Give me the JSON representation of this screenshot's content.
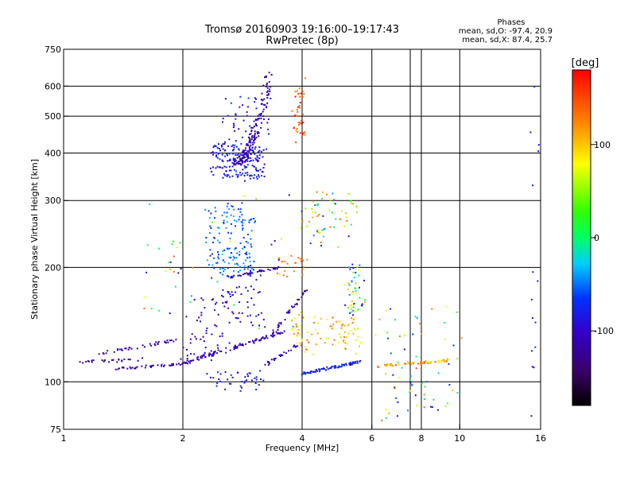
{
  "chart_data": {
    "type": "scatter",
    "title": "Tromsø 20160903 19:16:00–19:17:43",
    "subtitle": "RwPretec (8p)",
    "xlabel": "Frequency [MHz]",
    "ylabel": "Stationary phase Virtual Height [km]",
    "x_scale": "log",
    "y_scale": "log",
    "xlim": [
      1,
      16
    ],
    "ylim": [
      75,
      750
    ],
    "x_ticks": [
      1,
      2,
      4,
      6,
      8,
      10,
      16
    ],
    "x_tick_labels": [
      "1",
      "2",
      "4",
      "6",
      "8",
      "10",
      "16"
    ],
    "x_gridlines": [
      2,
      4,
      6,
      7.5,
      8,
      10
    ],
    "y_ticks": [
      75,
      100,
      200,
      300,
      400,
      500,
      600,
      750
    ],
    "y_tick_labels": [
      "75",
      "100",
      "200",
      "300",
      "400",
      "500",
      "600",
      "750"
    ],
    "y_gridlines": [
      100,
      200,
      300,
      400,
      500,
      600
    ],
    "grid": true,
    "phase_info": {
      "heading": "Phases",
      "o_line": "mean, sd,O: -97.4, 20.9",
      "x_line": "mean, sd,X:  87.4, 25.7"
    },
    "colorbar": {
      "label": "[deg]",
      "min": -180,
      "max": 180,
      "tick_values": [
        100,
        0,
        -100
      ],
      "tick_labels": [
        "100",
        "0",
        "-100"
      ],
      "colormap": "rainbow: black-purple-blue-cyan-green-yellow-orange-red"
    },
    "clusters": [
      {
        "x": [
          1.05,
          1.6
        ],
        "y": [
          112,
          115
        ],
        "phase": [
          -130,
          -115
        ],
        "n": 25,
        "trace": "line",
        "scatter": 0.02
      },
      {
        "x": [
          1.2,
          2.2
        ],
        "y": [
          118,
          132
        ],
        "phase": [
          -125,
          -110
        ],
        "n": 40,
        "trace": "line",
        "scatter": 0.02
      },
      {
        "x": [
          1.35,
          2.05
        ],
        "y": [
          108,
          112
        ],
        "phase": [
          -125,
          -110
        ],
        "n": 40,
        "trace": "line",
        "scatter": 0.015
      },
      {
        "x": [
          2.0,
          3.6
        ],
        "y": [
          112,
          135
        ],
        "phase": [
          -120,
          -100
        ],
        "n": 90,
        "trace": "line",
        "scatter": 0.02
      },
      {
        "x": [
          3.4,
          4.1
        ],
        "y": [
          135,
          175
        ],
        "phase": [
          -125,
          -105
        ],
        "n": 35,
        "trace": "line",
        "scatter": 0.02
      },
      {
        "x": [
          2.6,
          3.5
        ],
        "y": [
          188,
          200
        ],
        "phase": [
          -120,
          -100
        ],
        "n": 40,
        "trace": "line",
        "scatter": 0.012
      },
      {
        "x": [
          3.2,
          3.9
        ],
        "y": [
          110,
          125
        ],
        "phase": [
          -120,
          -90
        ],
        "n": 25,
        "trace": "line",
        "scatter": 0.02
      },
      {
        "x": [
          2.0,
          2.6
        ],
        "y": [
          115,
          175
        ],
        "phase": [
          -120,
          -95
        ],
        "n": 60,
        "trace": "band",
        "scatter": 0.04
      },
      {
        "x": [
          2.55,
          3.2
        ],
        "y": [
          140,
          180
        ],
        "phase": [
          -110,
          -80
        ],
        "n": 40,
        "trace": "band",
        "scatter": 0.04
      },
      {
        "x": [
          2.3,
          3.0
        ],
        "y": [
          190,
          290
        ],
        "phase": [
          -80,
          -30
        ],
        "n": 150,
        "trace": "band",
        "scatter": 0.05
      },
      {
        "x": [
          2.35,
          3.2
        ],
        "y": [
          340,
          420
        ],
        "phase": [
          -110,
          -60
        ],
        "n": 160,
        "trace": "band",
        "scatter": 0.03
      },
      {
        "x": [
          2.7,
          3.3
        ],
        "y": [
          380,
          650
        ],
        "phase": [
          -135,
          -90
        ],
        "n": 160,
        "trace": "curve",
        "scatter": 0.05
      },
      {
        "x": [
          2.55,
          3.3
        ],
        "y": [
          400,
          560
        ],
        "phase": [
          -110,
          -60
        ],
        "n": 60,
        "trace": "band",
        "scatter": 0.04
      },
      {
        "x": [
          3.85,
          4.0
        ],
        "y": [
          430,
          620
        ],
        "phase": [
          120,
          180
        ],
        "n": 40,
        "trace": "band",
        "scatter": 0.05
      },
      {
        "x": [
          2.3,
          3.2
        ],
        "y": [
          95,
          107
        ],
        "phase": [
          -110,
          -60
        ],
        "n": 40,
        "trace": "band",
        "scatter": 0.015
      },
      {
        "x": [
          4.0,
          5.6
        ],
        "y": [
          105,
          113
        ],
        "phase": [
          -100,
          -60
        ],
        "n": 80,
        "trace": "line",
        "scatter": 0.015
      },
      {
        "x": [
          3.8,
          5.6
        ],
        "y": [
          120,
          150
        ],
        "phase": [
          60,
          140
        ],
        "n": 90,
        "trace": "band",
        "scatter": 0.04
      },
      {
        "x": [
          5.2,
          5.7
        ],
        "y": [
          150,
          200
        ],
        "phase": [
          -100,
          110
        ],
        "n": 50,
        "trace": "band",
        "scatter": 0.05
      },
      {
        "x": [
          4.0,
          5.5
        ],
        "y": [
          230,
          310
        ],
        "phase": [
          -90,
          150
        ],
        "n": 60,
        "trace": "band",
        "scatter": 0.06
      },
      {
        "x": [
          3.5,
          4.1
        ],
        "y": [
          190,
          215
        ],
        "phase": [
          120,
          150
        ],
        "n": 20,
        "trace": "band",
        "scatter": 0.03
      },
      {
        "x": [
          6.2,
          9.5
        ],
        "y": [
          110,
          114
        ],
        "phase": [
          60,
          150
        ],
        "n": 60,
        "trace": "line",
        "scatter": 0.015
      },
      {
        "x": [
          6.3,
          9.8
        ],
        "y": [
          80,
          160
        ],
        "phase": [
          -120,
          150
        ],
        "n": 70,
        "trace": "band",
        "scatter": 0.08
      },
      {
        "x": [
          1.5,
          3.8
        ],
        "y": [
          140,
          310
        ],
        "phase": [
          -120,
          150
        ],
        "n": 50,
        "trace": "band",
        "scatter": 0.1
      },
      {
        "x": [
          15.4,
          15.6
        ],
        "y": [
          80,
          610
        ],
        "phase": [
          -110,
          -60
        ],
        "n": 15,
        "trace": "band",
        "scatter": 0.05
      }
    ]
  }
}
